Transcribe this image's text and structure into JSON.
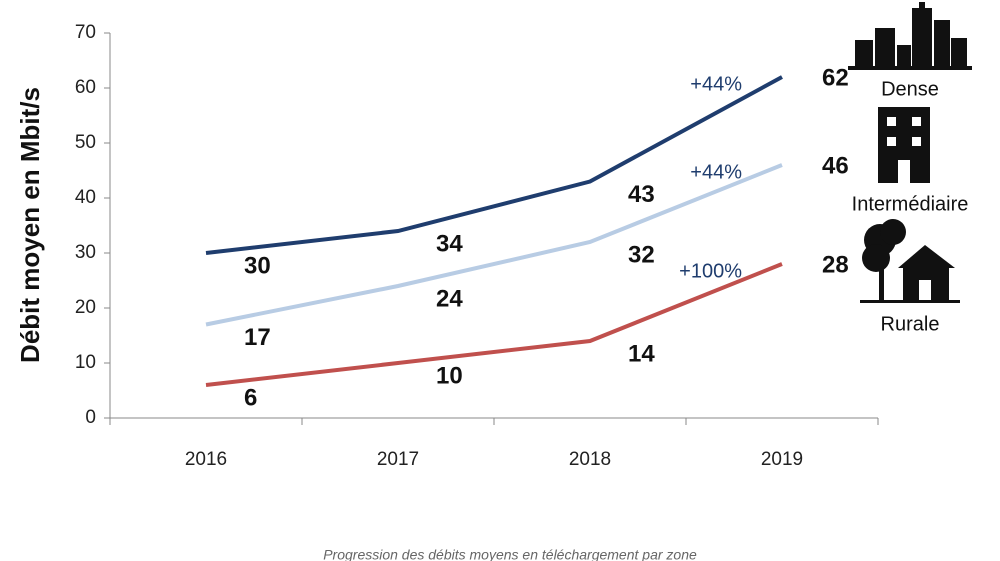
{
  "chart_data": {
    "type": "line",
    "ylabel": "Débit moyen en Mbit/s",
    "caption": "Progression des débits moyens en téléchargement par zone",
    "categories": [
      "2016",
      "2017",
      "2018",
      "2019"
    ],
    "series": [
      {
        "name": "Dense",
        "color": "#1f3d6e",
        "values": [
          30,
          34,
          43,
          62
        ],
        "annotation": "+44%"
      },
      {
        "name": "Intermédiaire",
        "color": "#b8cce4",
        "values": [
          17,
          24,
          32,
          46
        ],
        "annotation": "+44%"
      },
      {
        "name": "Rurale",
        "color": "#c0504d",
        "values": [
          6,
          10,
          14,
          28
        ],
        "annotation": "+100%"
      }
    ],
    "ylim": [
      0,
      70
    ],
    "yticks": [
      0,
      10,
      20,
      30,
      40,
      50,
      60,
      70
    ]
  }
}
